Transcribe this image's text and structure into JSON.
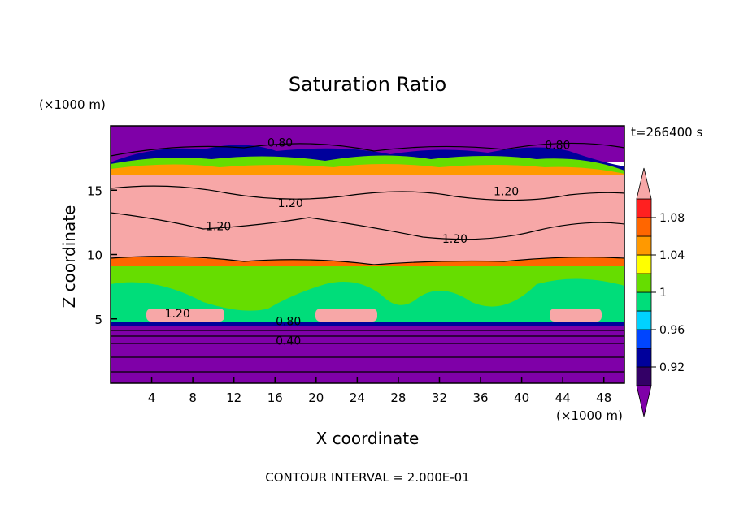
{
  "chart_data": {
    "type": "heatmap",
    "title": "Saturation Ratio",
    "xlabel": "X coordinate",
    "ylabel": "Z coordinate",
    "x_unit": "(×1000 m)",
    "y_unit": "(×1000 m)",
    "time_label": "t=266400 s",
    "footer": "CONTOUR INTERVAL = 2.000E-01",
    "xlim": [
      0,
      50
    ],
    "ylim": [
      0,
      20
    ],
    "x_ticks": [
      4,
      8,
      12,
      16,
      20,
      24,
      28,
      32,
      36,
      40,
      44,
      48
    ],
    "y_ticks": [
      5,
      10,
      15
    ],
    "colorbar": {
      "labels": [
        "0.92",
        "0.96",
        "1",
        "1.04",
        "1.08"
      ],
      "label_values": [
        0.92,
        0.96,
        1.0,
        1.04,
        1.08
      ],
      "levels": [
        0.9,
        0.92,
        0.94,
        0.96,
        0.98,
        1.0,
        1.02,
        1.04,
        1.06,
        1.08,
        1.1
      ],
      "colors": [
        "#330066",
        "#00009b",
        "#0045ff",
        "#00d2ff",
        "#00dd7a",
        "#66dd00",
        "#ffff00",
        "#ff9900",
        "#ff6600",
        "#ff2020",
        "#f7a7a7",
        "#7f00a8"
      ],
      "under_color": "#7f00a8",
      "over_color": "#f7a7a7"
    },
    "contour_labels": [
      {
        "text": "0.80",
        "x": 16.5,
        "y": 18.4
      },
      {
        "text": "0.80",
        "x": 43.5,
        "y": 18.2
      },
      {
        "text": "1.20",
        "x": 17.5,
        "y": 13.7
      },
      {
        "text": "1.20",
        "x": 38.5,
        "y": 14.6
      },
      {
        "text": "1.20",
        "x": 10.5,
        "y": 11.9
      },
      {
        "text": "1.20",
        "x": 33.5,
        "y": 10.9
      },
      {
        "text": "1.20",
        "x": 6.5,
        "y": 5.1
      },
      {
        "text": "0.80",
        "x": 17.3,
        "y": 4.5
      },
      {
        "text": "0.40",
        "x": 17.3,
        "y": 3.0
      }
    ]
  }
}
